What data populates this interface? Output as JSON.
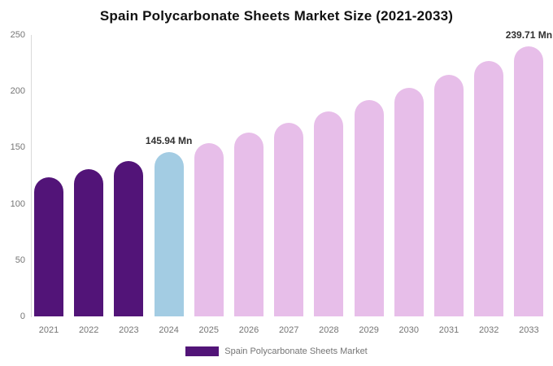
{
  "chart_data": {
    "type": "bar",
    "title": "Spain Polycarbonate Sheets Market Size (2021-2033)",
    "categories": [
      "2021",
      "2022",
      "2023",
      "2024",
      "2025",
      "2026",
      "2027",
      "2028",
      "2029",
      "2030",
      "2031",
      "2032",
      "2033"
    ],
    "values": [
      123.7,
      130.8,
      138.1,
      145.94,
      154.2,
      163.0,
      172.2,
      181.9,
      192.2,
      203.1,
      214.7,
      226.8,
      239.71
    ],
    "unit": "Mn",
    "xlabel": "",
    "ylabel": "",
    "ylim": [
      0,
      250
    ],
    "yticks": [
      0,
      50,
      100,
      150,
      200,
      250
    ],
    "grid": false,
    "legend_position": "bottom",
    "roles": [
      "past",
      "past",
      "past",
      "current",
      "forecast",
      "forecast",
      "forecast",
      "forecast",
      "forecast",
      "forecast",
      "forecast",
      "forecast",
      "forecast"
    ],
    "colors": {
      "past": "#521478",
      "current": "#A3CCE3",
      "forecast": "#E7BEE9"
    },
    "annotations": [
      {
        "category": "2024",
        "text": "145.94 Mn"
      },
      {
        "category": "2033",
        "text": "239.71 Mn"
      }
    ]
  },
  "legend": {
    "swatch_color": "#521478",
    "label": "Spain Polycarbonate Sheets Market"
  }
}
